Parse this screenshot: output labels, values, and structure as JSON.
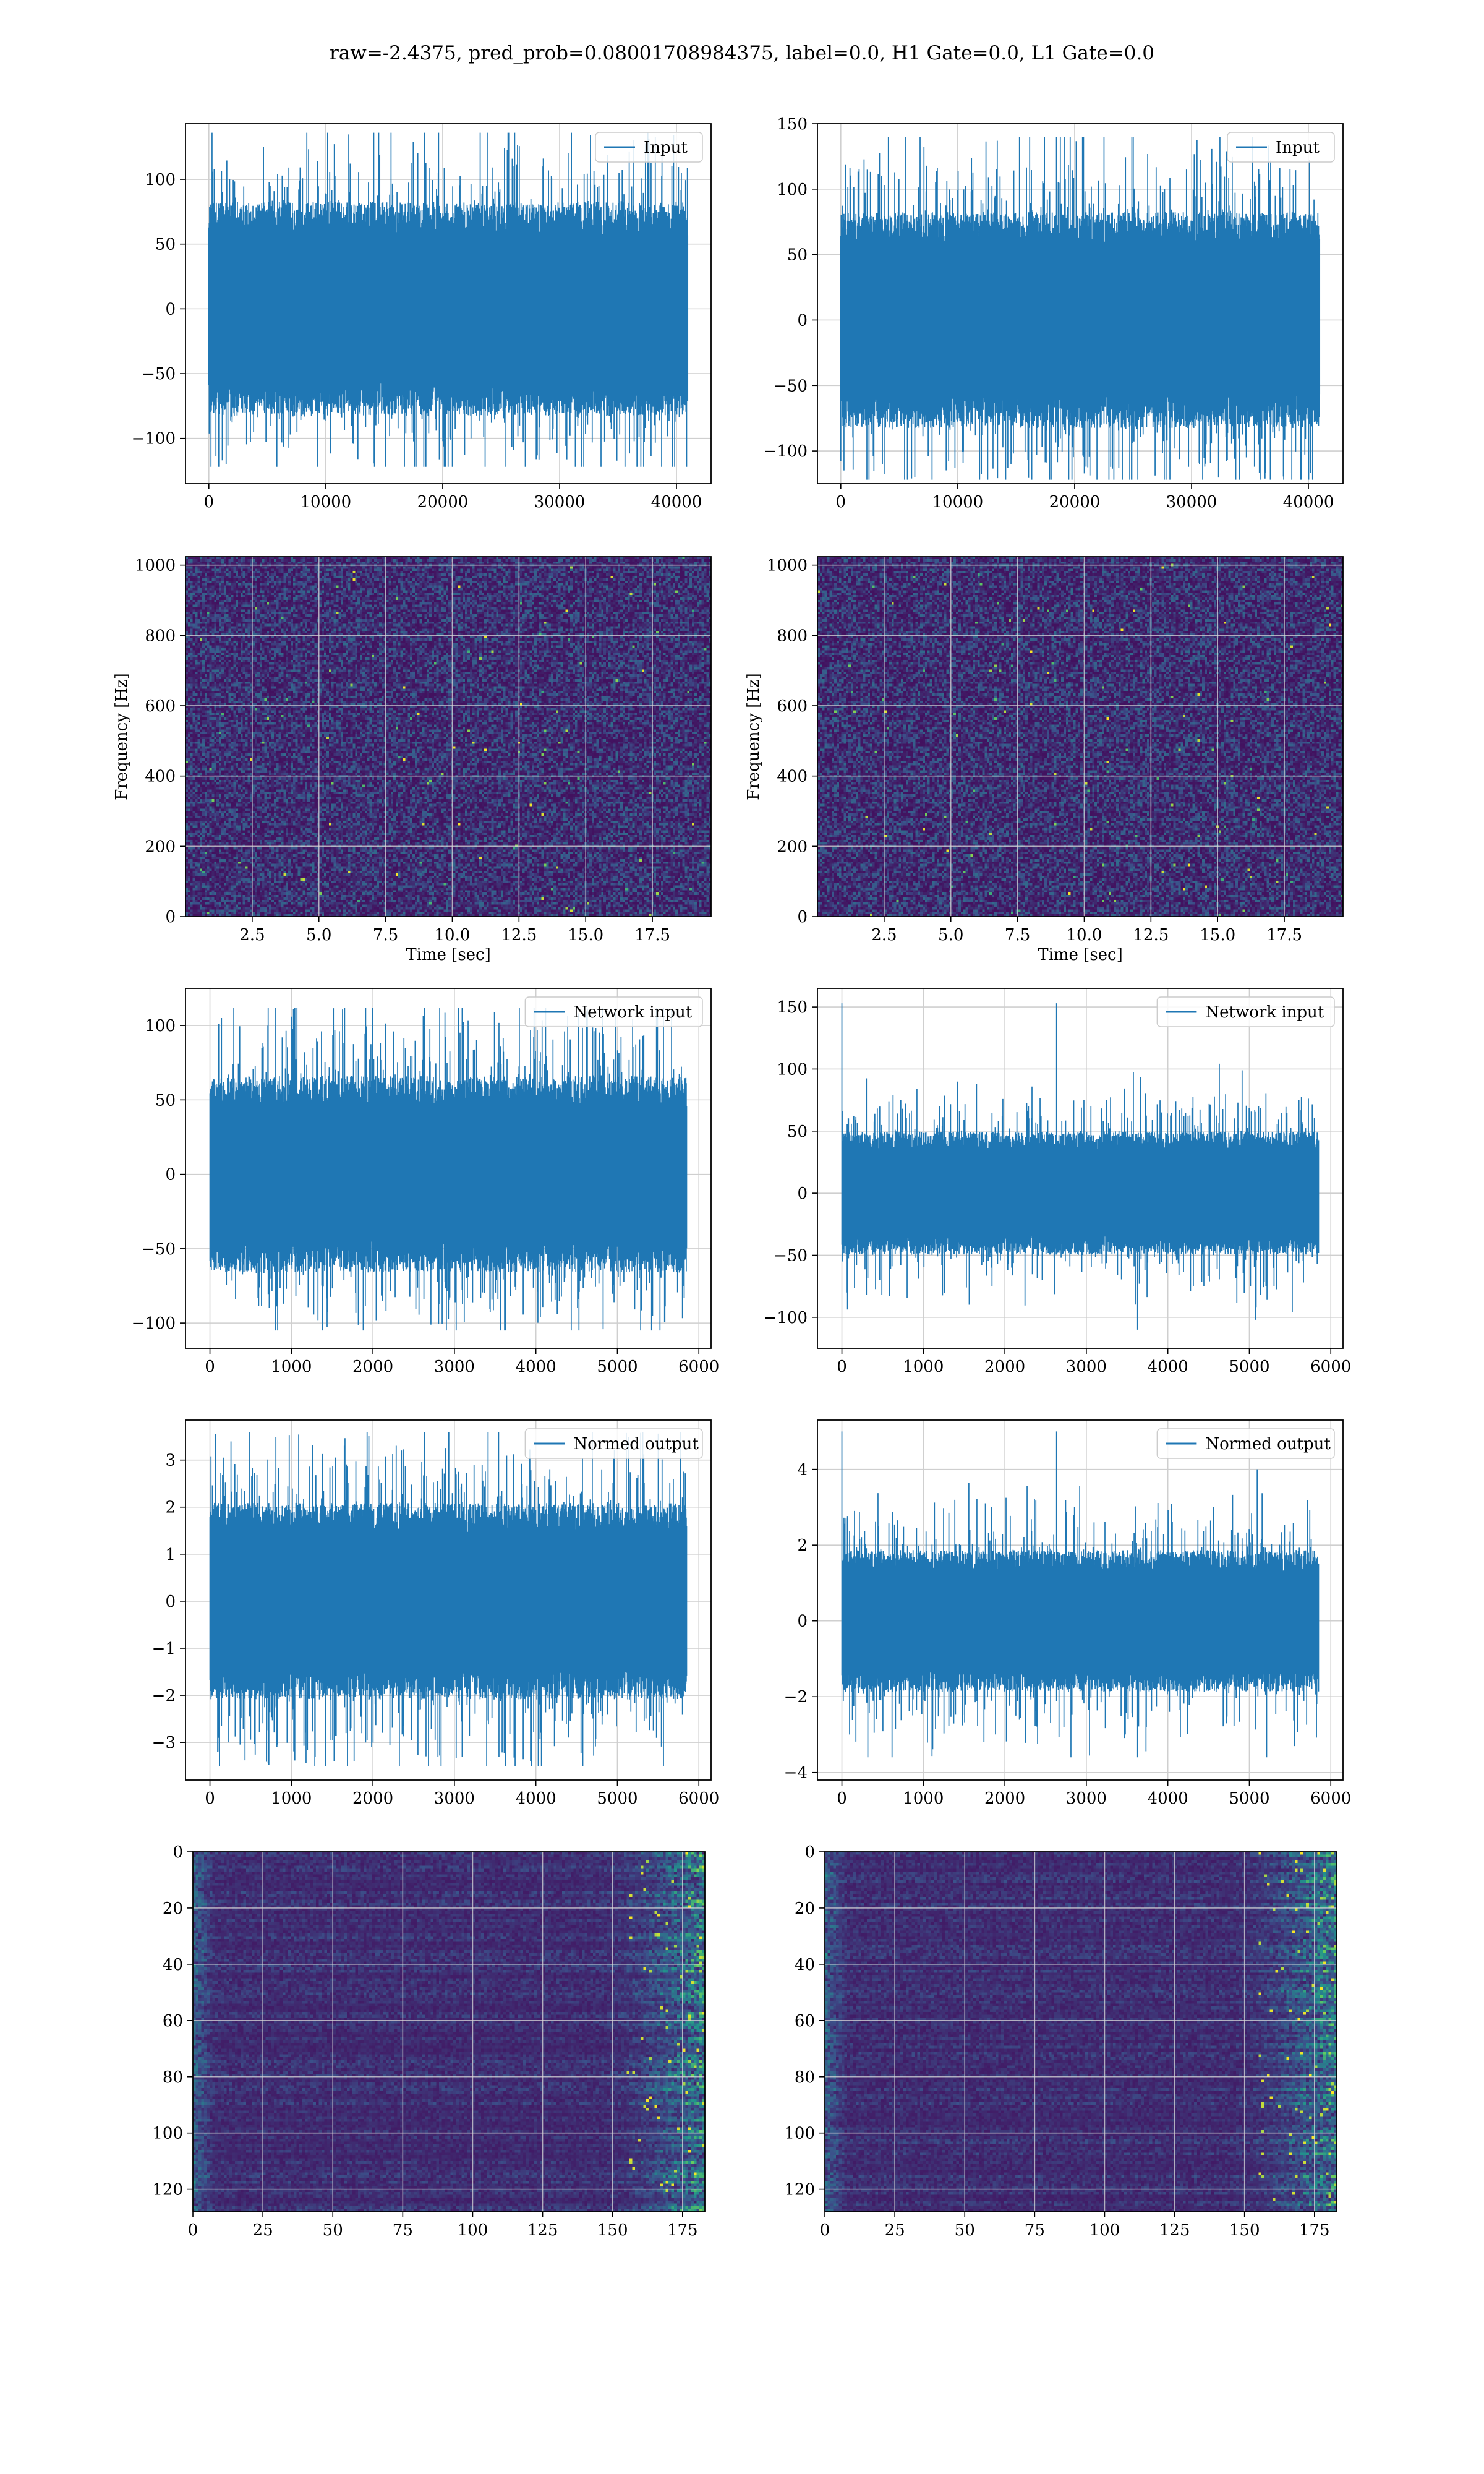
{
  "title": "raw=-2.4375, pred_prob=0.08001708984375, label=0.0, H1 Gate=0.0, L1 Gate=0.0",
  "colors": {
    "line": "#1f77b4",
    "grid": "#cfcfcf",
    "viridis_dark": "#440154",
    "viridis_mid": "#21918c",
    "viridis_bright": "#fde725"
  },
  "chart_data": [
    {
      "id": "h1-input",
      "type": "line",
      "legend": "Input",
      "legend_position": "top-right",
      "grid": true,
      "xlim": [
        -2000,
        42960
      ],
      "ylim": [
        -135,
        143
      ],
      "xticks": [
        0,
        10000,
        20000,
        30000,
        40000
      ],
      "yticks": [
        -100,
        -50,
        0,
        50,
        100
      ],
      "series": [
        {
          "n": 40960,
          "x_range": [
            0,
            40960
          ],
          "band": [
            -75,
            75
          ],
          "extremes": [
            -122,
            136
          ],
          "spike_at": []
        }
      ]
    },
    {
      "id": "l1-input",
      "type": "line",
      "legend": "Input",
      "legend_position": "top-right",
      "grid": true,
      "xlim": [
        -2000,
        42960
      ],
      "ylim": [
        -125,
        150
      ],
      "xticks": [
        0,
        10000,
        20000,
        30000,
        40000
      ],
      "yticks": [
        -100,
        -50,
        0,
        50,
        100,
        150
      ],
      "series": [
        {
          "n": 40960,
          "x_range": [
            0,
            40960
          ],
          "band": [
            -75,
            75
          ],
          "extremes": [
            -122,
            140
          ],
          "spike_at": []
        }
      ]
    },
    {
      "id": "h1-spectrogram",
      "type": "heatmap",
      "grid": true,
      "xlabel": "Time [sec]",
      "ylabel": "Frequency [Hz]",
      "xlim": [
        0,
        19.7
      ],
      "ylim": [
        0,
        1024
      ],
      "xticks": [
        2.5,
        5.0,
        7.5,
        10.0,
        12.5,
        15.0,
        17.5
      ],
      "yticks": [
        0,
        200,
        400,
        600,
        800,
        1000
      ],
      "colormap": "viridis",
      "content": "broadband noise with sparse bright pixels"
    },
    {
      "id": "l1-spectrogram",
      "type": "heatmap",
      "grid": true,
      "xlabel": "Time [sec]",
      "ylabel": "Frequency [Hz]",
      "xlim": [
        0,
        19.7
      ],
      "ylim": [
        0,
        1024
      ],
      "xticks": [
        2.5,
        5.0,
        7.5,
        10.0,
        12.5,
        15.0,
        17.5
      ],
      "yticks": [
        0,
        200,
        400,
        600,
        800,
        1000
      ],
      "colormap": "viridis",
      "content": "broadband noise with sparse bright pixels"
    },
    {
      "id": "h1-network-input",
      "type": "line",
      "legend": "Network input",
      "legend_position": "top-right",
      "grid": true,
      "xlim": [
        -300,
        6150
      ],
      "ylim": [
        -117,
        125
      ],
      "xticks": [
        0,
        1000,
        2000,
        3000,
        4000,
        5000,
        6000
      ],
      "yticks": [
        -100,
        -50,
        0,
        50,
        100
      ],
      "series": [
        {
          "n": 5850,
          "x_range": [
            0,
            5850
          ],
          "band": [
            -60,
            60
          ],
          "extremes": [
            -105,
            112
          ],
          "spike_at": []
        }
      ]
    },
    {
      "id": "l1-network-input",
      "type": "line",
      "legend": "Network input",
      "legend_position": "top-right",
      "grid": true,
      "xlim": [
        -300,
        6150
      ],
      "ylim": [
        -125,
        165
      ],
      "xticks": [
        0,
        1000,
        2000,
        3000,
        4000,
        5000,
        6000
      ],
      "yticks": [
        -100,
        -50,
        0,
        50,
        100,
        150
      ],
      "series": [
        {
          "n": 5850,
          "x_range": [
            0,
            5850
          ],
          "band": [
            -45,
            45
          ],
          "extremes": [
            -110,
            153
          ],
          "spike_at": [
            0
          ]
        }
      ]
    },
    {
      "id": "h1-normed-output",
      "type": "line",
      "legend": "Normed output",
      "legend_position": "top-right",
      "grid": true,
      "xlim": [
        -300,
        6150
      ],
      "ylim": [
        -3.8,
        3.85
      ],
      "xticks": [
        0,
        1000,
        2000,
        3000,
        4000,
        5000,
        6000
      ],
      "yticks": [
        -3,
        -2,
        -1,
        0,
        1,
        2,
        3
      ],
      "series": [
        {
          "n": 5850,
          "x_range": [
            0,
            5850
          ],
          "band": [
            -1.9,
            1.9
          ],
          "extremes": [
            -3.5,
            3.6
          ],
          "spike_at": []
        }
      ]
    },
    {
      "id": "l1-normed-output",
      "type": "line",
      "legend": "Normed output",
      "legend_position": "top-right",
      "grid": true,
      "xlim": [
        -300,
        6150
      ],
      "ylim": [
        -4.2,
        5.3
      ],
      "xticks": [
        0,
        1000,
        2000,
        3000,
        4000,
        5000,
        6000
      ],
      "yticks": [
        -4,
        -2,
        0,
        2,
        4
      ],
      "series": [
        {
          "n": 5850,
          "x_range": [
            0,
            5850
          ],
          "band": [
            -1.7,
            1.7
          ],
          "extremes": [
            -3.6,
            5.0
          ],
          "spike_at": [
            0
          ]
        }
      ]
    },
    {
      "id": "h1-feature-map",
      "type": "heatmap",
      "grid": true,
      "xlim": [
        0,
        183
      ],
      "ylim": [
        128,
        0
      ],
      "xticks": [
        0,
        25,
        50,
        75,
        100,
        125,
        150,
        175
      ],
      "yticks": [
        0,
        20,
        40,
        60,
        80,
        100,
        120
      ],
      "colormap": "viridis",
      "content": "row-structured activations, brighter toward the right edge"
    },
    {
      "id": "l1-feature-map",
      "type": "heatmap",
      "grid": true,
      "xlim": [
        0,
        183
      ],
      "ylim": [
        128,
        0
      ],
      "xticks": [
        0,
        25,
        50,
        75,
        100,
        125,
        150,
        175
      ],
      "yticks": [
        0,
        20,
        40,
        60,
        80,
        100,
        120
      ],
      "colormap": "viridis",
      "content": "row-structured activations, brighter toward the right edge"
    }
  ]
}
